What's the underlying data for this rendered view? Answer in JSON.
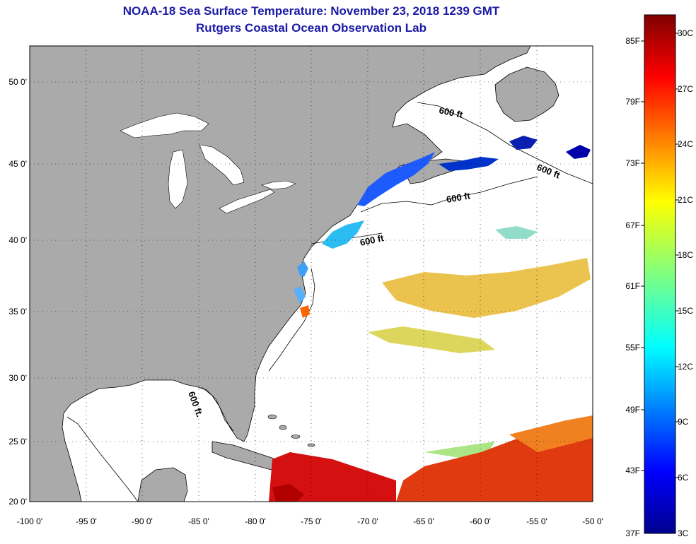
{
  "header": {
    "title": "NOAA-18 Sea Surface Temperature:  November 23, 2018 1239 GMT",
    "subtitle": "Rutgers Coastal Ocean Observation Lab"
  },
  "map": {
    "lon_range": [
      -100,
      -50
    ],
    "lat_range": [
      20,
      52
    ],
    "lon_ticks": [
      "-100 0'",
      "-95 0'",
      "-90 0'",
      "-85 0'",
      "-80 0'",
      "-75 0'",
      "-70 0'",
      "-65 0'",
      "-60 0'",
      "-55 0'",
      "-50 0'"
    ],
    "lat_ticks": [
      "50 0'",
      "45 0'",
      "40 0'",
      "35 0'",
      "30 0'",
      "25 0'",
      "20 0'"
    ],
    "contour_labels": [
      "600 ft",
      "600 ft",
      "600 ft",
      "600 ft",
      "600 ft."
    ],
    "colors": {
      "land": "#aaaaaa",
      "ocean": "#ffffff",
      "title": "#1a1aa6"
    }
  },
  "colorbar": {
    "fahrenheit_labels": [
      "85F",
      "79F",
      "73F",
      "67F",
      "61F",
      "55F",
      "49F",
      "43F",
      "37F"
    ],
    "celsius_labels": [
      "30C",
      "27C",
      "24C",
      "21C",
      "18C",
      "15C",
      "12C",
      "9C",
      "6C",
      "3C"
    ],
    "range_c": [
      3,
      31
    ]
  }
}
